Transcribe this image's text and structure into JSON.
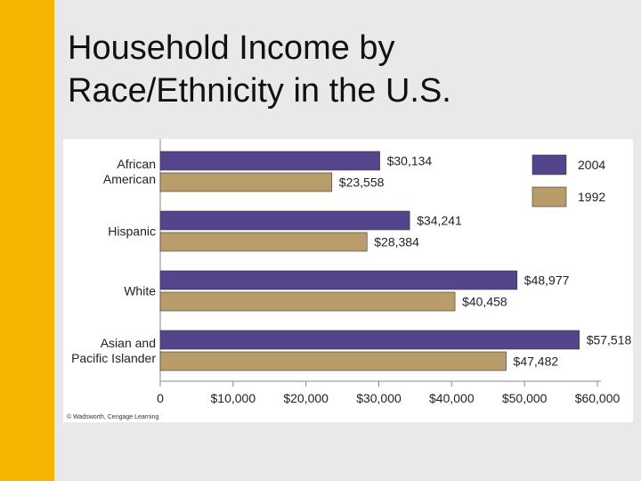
{
  "slide": {
    "title_line1": "Household Income by",
    "title_line2": "Race/Ethnicity in the U.S.",
    "credit": "© Wadsworth, Cengage Learning"
  },
  "colors": {
    "accent": "#f5b400",
    "series_2004": "#54448c",
    "series_1992": "#b89c6a"
  },
  "chart_data": {
    "type": "bar",
    "orientation": "horizontal",
    "title": "",
    "xlabel": "",
    "ylabel": "",
    "categories": [
      [
        "African",
        "American"
      ],
      [
        "Hispanic"
      ],
      [
        "White"
      ],
      [
        "Asian and",
        "Pacific Islander"
      ]
    ],
    "series": [
      {
        "name": "2004",
        "values": [
          30134,
          34241,
          48977,
          57518
        ],
        "labels": [
          "$30,134",
          "$34,241",
          "$48,977",
          "$57,518"
        ]
      },
      {
        "name": "1992",
        "values": [
          23558,
          28384,
          40458,
          47482
        ],
        "labels": [
          "$23,558",
          "$28,384",
          "$40,458",
          "$47,482"
        ]
      }
    ],
    "xlim": [
      0,
      60000
    ],
    "ticks": [
      0,
      10000,
      20000,
      30000,
      40000,
      50000,
      60000
    ],
    "tick_labels": [
      "0",
      "$10,000",
      "$20,000",
      "$30,000",
      "$40,000",
      "$50,000",
      "$60,000"
    ],
    "legend": {
      "position": "top-right",
      "entries": [
        "2004",
        "1992"
      ]
    },
    "grid": false
  }
}
